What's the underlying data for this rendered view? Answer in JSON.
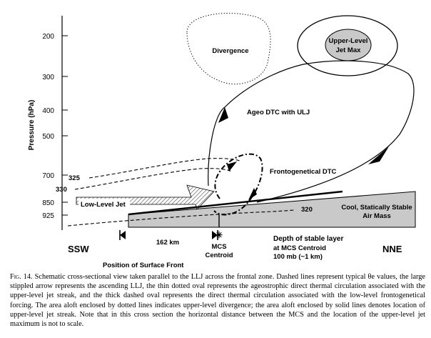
{
  "figure": {
    "y_axis": {
      "label": "Pressure (hPa)",
      "ticks": [
        "200",
        "300",
        "400",
        "500",
        "700",
        "850",
        "925"
      ]
    },
    "isentropes": [
      "325",
      "330",
      "320"
    ],
    "labels": {
      "divergence": "Divergence",
      "jet_max_line1": "Upper-Level",
      "jet_max_line2": "Jet Max",
      "ageo_dtc": "Ageo DTC with ULJ",
      "frontogenetical_dtc": "Frontogenetical DTC",
      "low_level_jet": "Low-Level Jet",
      "cool_air_line1": "Cool, Statically Stable",
      "cool_air_line2": "Air Mass",
      "distance": "162 km",
      "mcs_line1": "MCS",
      "mcs_line2": "Centroid",
      "depth_line1": "Depth of stable layer",
      "depth_line2": "at MCS Centroid",
      "depth_line3": "100 mb (~1 km)",
      "ssw": "SSW",
      "nne": "NNE",
      "surface_front": "Position of Surface Front"
    }
  },
  "caption": {
    "lead": "Fig. 14.",
    "text": " Schematic cross-sectional view taken parallel to the LLJ across the frontal zone. Dashed lines represent typical θe values, the large stippled arrow represents the ascending LLJ, the thin dotted oval represents the ageostrophic direct thermal circulation associated with the upper-level jet streak, and the thick dashed oval represents the direct thermal circulation associated with the low-level frontogenetical forcing. The area aloft enclosed by dotted lines indicates upper-level divergence; the area aloft enclosed by solid lines denotes location of upper-level jet streak. Note that in this cross section the horizontal distance between the MCS and the location of the upper-level jet maximum is not to scale."
  }
}
